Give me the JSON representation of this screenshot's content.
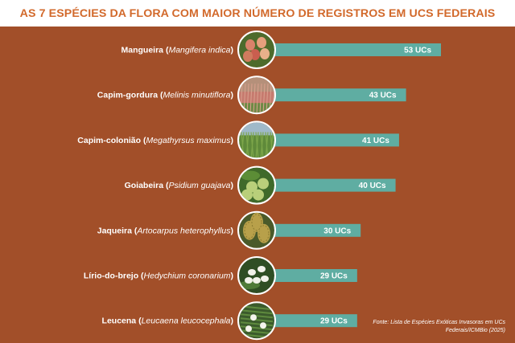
{
  "title": "AS 7 ESPÉCIES DA FLORA COM MAIOR NÚMERO DE REGISTROS EM UCS FEDERAIS",
  "source": "Fonte: Lista de Espécies Exóticas Invasoras em UCs Federais/ICMBio (2025)",
  "colors": {
    "title": "#d2692b",
    "panel": "#a24f29",
    "bar": "#5fada2"
  },
  "chart_data": {
    "type": "bar",
    "orientation": "horizontal",
    "categories": [
      {
        "common": "Mangueira",
        "scientific": "Mangifera indica",
        "icon": "mango-photo"
      },
      {
        "common": "Capim-gordura",
        "scientific": "Melinis minutiflora",
        "icon": "molasses-grass-photo"
      },
      {
        "common": "Capim-colonião",
        "scientific": "Megathyrsus maximus",
        "icon": "guinea-grass-photo"
      },
      {
        "common": "Goiabeira",
        "scientific": "Psidium guajava",
        "icon": "guava-photo"
      },
      {
        "common": "Jaqueira",
        "scientific": "Artocarpus heterophyllus",
        "icon": "jackfruit-photo"
      },
      {
        "common": "Lírio-do-brejo",
        "scientific": "Hedychium coronarium",
        "icon": "ginger-lily-photo"
      },
      {
        "common": "Leucena",
        "scientific": "Leucaena leucocephala",
        "icon": "leucaena-photo"
      }
    ],
    "values": [
      53,
      43,
      41,
      40,
      30,
      29,
      29
    ],
    "value_labels": [
      "53 UCs",
      "43 UCs",
      "41 UCs",
      "40 UCs",
      "30 UCs",
      "29 UCs",
      "29 UCs"
    ],
    "grid": false,
    "legend": "none"
  }
}
